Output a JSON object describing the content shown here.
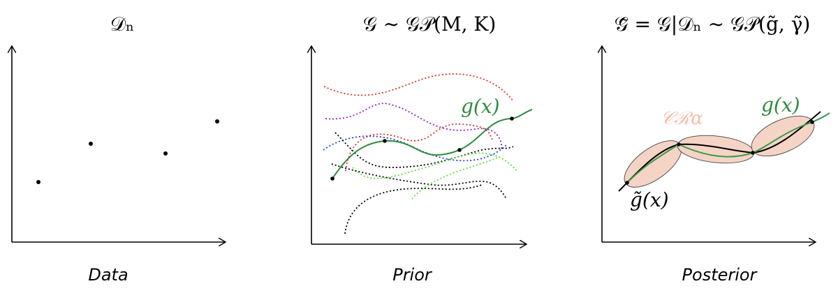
{
  "panels": [
    {
      "title": "𝒟ₙ",
      "caption": "Data"
    },
    {
      "title": "𝒢 ∼ 𝒢𝒫(M, K)",
      "caption": "Prior",
      "labels": [
        "g(x)"
      ]
    },
    {
      "title": "𝒢̃ = 𝒢|𝒟ₙ ∼ 𝒢𝒫(g̃, γ̃)",
      "caption": "Posterior",
      "labels": [
        "𝒞ℛα",
        "g(x)",
        "g̃(x)"
      ]
    }
  ]
}
